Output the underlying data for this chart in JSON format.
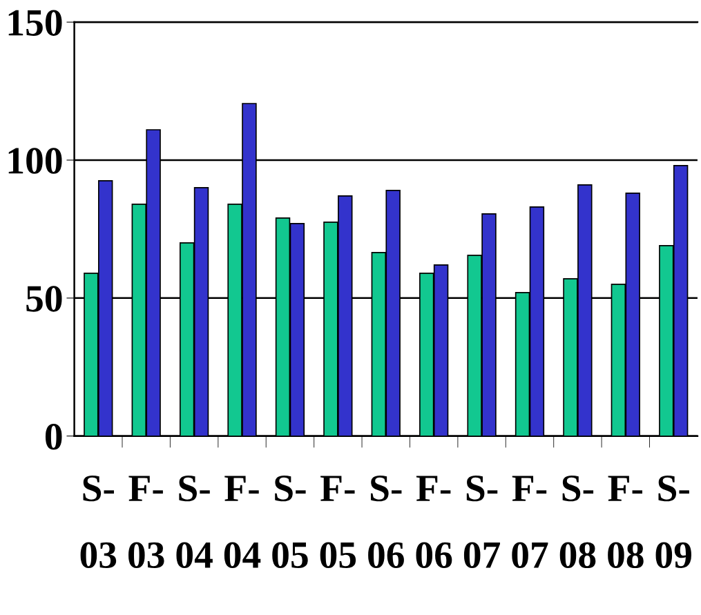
{
  "chart_data": {
    "type": "bar",
    "categories": [
      "S-03",
      "F-03",
      "S-04",
      "F-04",
      "S-05",
      "F-05",
      "S-06",
      "F-06",
      "S-07",
      "F-07",
      "S-08",
      "F-08",
      "S-09"
    ],
    "series": [
      {
        "color": "#12c890",
        "values": [
          59,
          84,
          70,
          84,
          79,
          77.5,
          66.5,
          59,
          65.5,
          52,
          57,
          55,
          69
        ]
      },
      {
        "color": "#3333cc",
        "values": [
          92.5,
          111,
          90,
          120.5,
          77,
          87,
          89,
          62,
          80.5,
          83,
          91,
          88,
          98
        ]
      }
    ],
    "ylim": [
      0,
      150
    ],
    "yticks": [
      0,
      50,
      100,
      150
    ],
    "grid": "y",
    "legend": false
  }
}
